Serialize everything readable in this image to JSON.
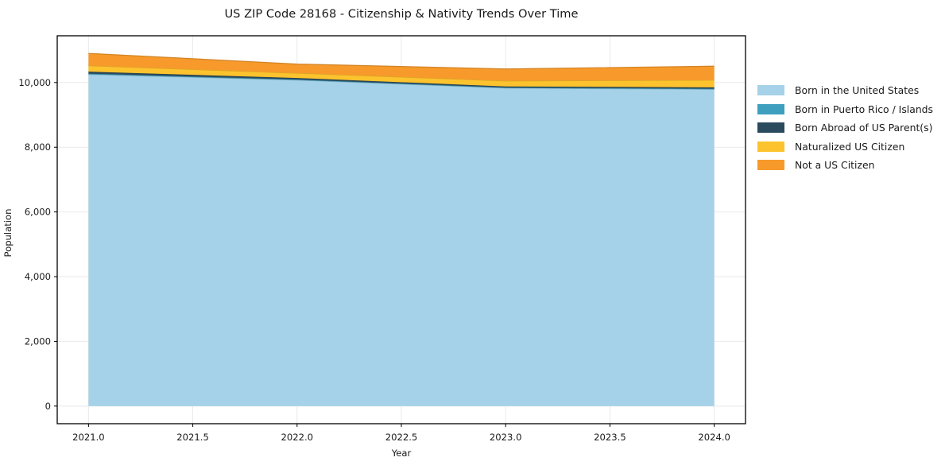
{
  "chart_data": {
    "type": "area",
    "stacked": true,
    "title": "US ZIP Code 28168 - Citizenship & Nativity Trends Over Time",
    "xlabel": "Year",
    "ylabel": "Population",
    "x": [
      2021,
      2022,
      2023,
      2024
    ],
    "series": [
      {
        "name": "Born in the United States",
        "color": "#a5d2e8",
        "values": [
          10250,
          10075,
          9830,
          9790
        ]
      },
      {
        "name": "Born in Puerto Rico / Islands",
        "color": "#3f9fbe",
        "values": [
          25,
          20,
          15,
          20
        ]
      },
      {
        "name": "Born Abroad of US Parent(s)",
        "color": "#2a4a5e",
        "values": [
          60,
          45,
          35,
          40
        ]
      },
      {
        "name": "Naturalized US Citizen",
        "color": "#fcc32e",
        "values": [
          185,
          150,
          170,
          225
        ]
      },
      {
        "name": "Not a US Citizen",
        "color": "#f79a2b",
        "values": [
          380,
          280,
          370,
          430
        ]
      }
    ],
    "xlim": [
      2020.85,
      2024.15
    ],
    "ylim": [
      -545,
      11445
    ],
    "x_ticks": [
      {
        "v": 2021.0,
        "label": "2021.0"
      },
      {
        "v": 2021.5,
        "label": "2021.5"
      },
      {
        "v": 2022.0,
        "label": "2022.0"
      },
      {
        "v": 2022.5,
        "label": "2022.5"
      },
      {
        "v": 2023.0,
        "label": "2023.0"
      },
      {
        "v": 2023.5,
        "label": "2023.5"
      },
      {
        "v": 2024.0,
        "label": "2024.0"
      }
    ],
    "y_ticks": [
      {
        "v": 0,
        "label": "0"
      },
      {
        "v": 2000,
        "label": "2,000"
      },
      {
        "v": 4000,
        "label": "4,000"
      },
      {
        "v": 6000,
        "label": "6,000"
      },
      {
        "v": 8000,
        "label": "8,000"
      },
      {
        "v": 10000,
        "label": "10,000"
      }
    ],
    "grid": true,
    "grid_color": "#e9e9e9",
    "spine_color": "#000000",
    "legend_position": "right"
  }
}
